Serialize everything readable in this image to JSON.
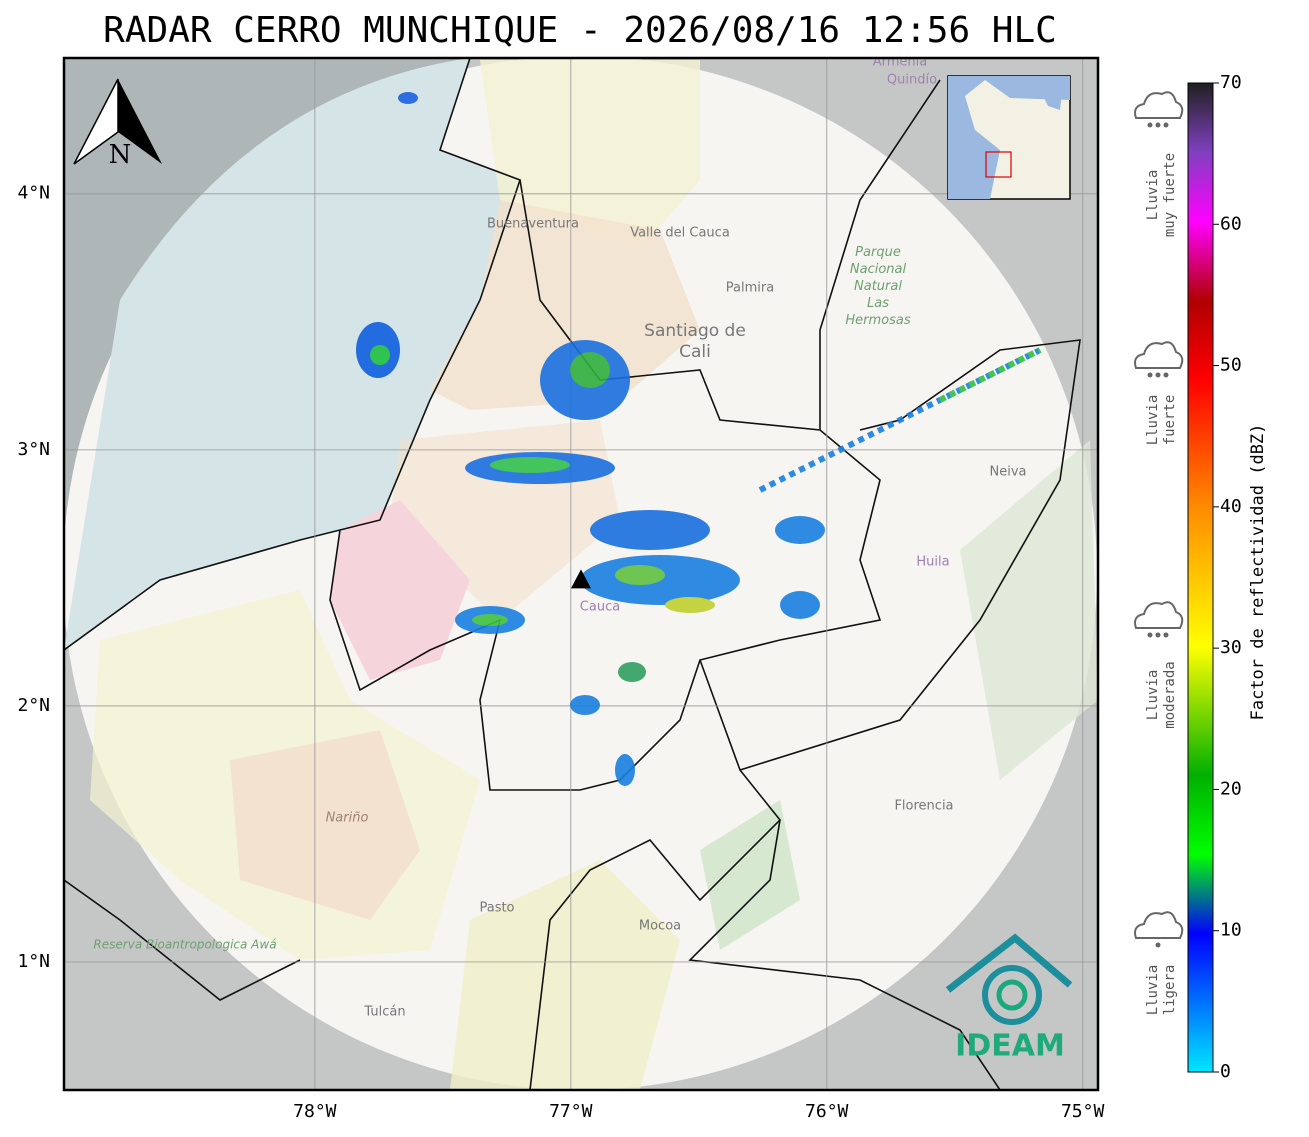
{
  "title": "RADAR CERRO MUNCHIQUE - 2026/08/16 12:56 HLC",
  "map": {
    "lonlim": [
      -78.98,
      -74.94
    ],
    "latlim": [
      0.5,
      4.53
    ],
    "lon_ticks": [
      {
        "value": -78,
        "label": "78°W"
      },
      {
        "value": -77,
        "label": "77°W"
      },
      {
        "value": -76,
        "label": "76°W"
      },
      {
        "value": -75,
        "label": "75°W"
      }
    ],
    "lat_ticks": [
      {
        "value": 4,
        "label": "4°N"
      },
      {
        "value": 3,
        "label": "3°N"
      },
      {
        "value": 2,
        "label": "2°N"
      },
      {
        "value": 1,
        "label": "1°N"
      }
    ],
    "radar": {
      "lon": -76.96,
      "lat": 2.49
    },
    "places": [
      "Buenaventura",
      "Valle del Cauca",
      "Palmira",
      "Santiago de",
      "Cali",
      "Parque Nacional Natural Las Hermosas",
      "Neiva",
      "Huila",
      "Florencia",
      "Nariño",
      "Pasto",
      "Mocoa",
      "Tulcán",
      "Reserva Bioantropologica Awá",
      "Armenia",
      "Quindío",
      "Cauca"
    ],
    "north": "N",
    "logo": "IDEAM"
  },
  "colorbar": {
    "label": "Factor de reflectividad (dBZ)",
    "lim": [
      0,
      70
    ],
    "ticks": [
      0,
      10,
      20,
      30,
      40,
      50,
      60,
      70
    ]
  },
  "rain_levels": [
    [
      "Lluvia",
      "muy fuerte"
    ],
    [
      "Lluvia",
      "fuerte"
    ],
    [
      "Lluvia",
      "moderada"
    ],
    [
      "Lluvia",
      "ligera"
    ]
  ]
}
